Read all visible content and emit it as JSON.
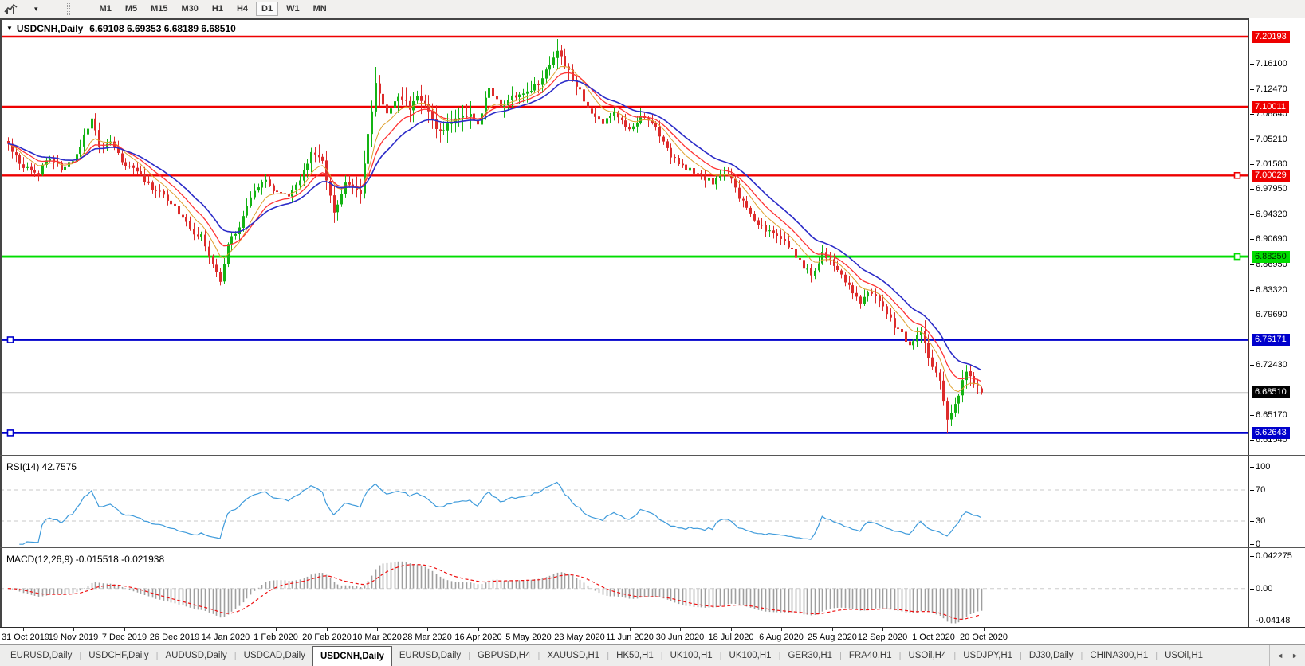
{
  "toolbar": {
    "dropdown_arrow": "▾",
    "timeframes": [
      "M1",
      "M5",
      "M15",
      "M30",
      "H1",
      "H4",
      "D1",
      "W1",
      "MN"
    ],
    "active_timeframe": "D1"
  },
  "chart_window": {
    "title_arrow": "▼",
    "symbol": "USDCNH,Daily",
    "ohlc": "6.69108 6.69353 6.68189 6.68510",
    "rsi_label": "RSI(14) 42.7575",
    "macd_label": "MACD(12,26,9) -0.015518 -0.021938"
  },
  "price_scale": {
    "ticks": [
      "7.16100",
      "7.12470",
      "7.08840",
      "7.05210",
      "7.01580",
      "6.97950",
      "6.94320",
      "6.90690",
      "6.86950",
      "6.83320",
      "6.79690",
      "6.72430",
      "6.65170",
      "6.61540"
    ],
    "level_labels": [
      {
        "text": "7.20193",
        "bg": "#ee0000",
        "fg": "#ffffff"
      },
      {
        "text": "7.10011",
        "bg": "#ee0000",
        "fg": "#ffffff"
      },
      {
        "text": "7.00029",
        "bg": "#ee0000",
        "fg": "#ffffff"
      },
      {
        "text": "6.88250",
        "bg": "#00dd00",
        "fg": "#002a00"
      },
      {
        "text": "6.76171",
        "bg": "#0000cc",
        "fg": "#ffffff"
      },
      {
        "text": "6.68510",
        "bg": "#000000",
        "fg": "#ffffff"
      },
      {
        "text": "6.62643",
        "bg": "#0000cc",
        "fg": "#ffffff"
      }
    ],
    "rsi_ticks": [
      "100",
      "70",
      "30",
      "0"
    ],
    "macd_ticks": [
      "0.042275",
      "0.00",
      "-0.04148"
    ]
  },
  "date_axis": [
    "31 Oct 2019",
    "19 Nov 2019",
    "7 Dec 2019",
    "26 Dec 2019",
    "14 Jan 2020",
    "1 Feb 2020",
    "20 Feb 2020",
    "10 Mar 2020",
    "28 Mar 2020",
    "16 Apr 2020",
    "5 May 2020",
    "23 May 2020",
    "11 Jun 2020",
    "30 Jun 2020",
    "18 Jul 2020",
    "6 Aug 2020",
    "25 Aug 2020",
    "12 Sep 2020",
    "1 Oct 2020",
    "20 Oct 2020"
  ],
  "tab_bar": {
    "tabs": [
      "EURUSD,Daily",
      "USDCHF,Daily",
      "AUDUSD,Daily",
      "USDCAD,Daily",
      "USDCNH,Daily",
      "EURUSD,Daily",
      "GBPUSD,H4",
      "XAUUSD,H1",
      "HK50,H1",
      "UK100,H1",
      "UK100,H1",
      "GER30,H1",
      "FRA40,H1",
      "USOil,H4",
      "USDJPY,H1",
      "DJ30,Daily",
      "CHINA300,H1",
      "USOil,H1"
    ],
    "active_index": 4,
    "scroll_left_arrow": "◄",
    "scroll_right_arrow": "►"
  },
  "chart_data": {
    "type": "candlestick",
    "symbol": "USDCNH",
    "timeframe": "Daily",
    "ohlc": {
      "open": 6.69108,
      "high": 6.69353,
      "low": 6.68189,
      "close": 6.6851
    },
    "visible_price_range": [
      6.6154,
      7.2019
    ],
    "candle_count": 258,
    "current_price": 6.6851,
    "horizontal_levels": [
      {
        "price": 7.20193,
        "color": "#ee0000",
        "width": 2.4,
        "marker": null
      },
      {
        "price": 7.10011,
        "color": "#ee0000",
        "width": 2.4,
        "marker": null
      },
      {
        "price": 7.00029,
        "color": "#ee0000",
        "width": 2.4,
        "marker": "right"
      },
      {
        "price": 6.8825,
        "color": "#00dd00",
        "width": 2.8,
        "marker": "right"
      },
      {
        "price": 6.76171,
        "color": "#0000cc",
        "width": 2.8,
        "marker": "left"
      },
      {
        "price": 6.62643,
        "color": "#0000cc",
        "width": 2.8,
        "marker": "left"
      }
    ],
    "price_path": [
      [
        0,
        7.045
      ],
      [
        4,
        7.01
      ],
      [
        8,
        7.005
      ],
      [
        11,
        7.028
      ],
      [
        14,
        7.012
      ],
      [
        18,
        7.03
      ],
      [
        21,
        7.07
      ],
      [
        22,
        7.082
      ],
      [
        24,
        7.045
      ],
      [
        27,
        7.05
      ],
      [
        30,
        7.02
      ],
      [
        33,
        7.012
      ],
      [
        38,
        6.982
      ],
      [
        41,
        6.972
      ],
      [
        44,
        6.955
      ],
      [
        48,
        6.92
      ],
      [
        51,
        6.913
      ],
      [
        54,
        6.872
      ],
      [
        56,
        6.85
      ],
      [
        58,
        6.9
      ],
      [
        61,
        6.928
      ],
      [
        64,
        6.965
      ],
      [
        67,
        6.995
      ],
      [
        71,
        6.975
      ],
      [
        74,
        6.968
      ],
      [
        77,
        6.992
      ],
      [
        80,
        7.03
      ],
      [
        83,
        7.022
      ],
      [
        86,
        6.942
      ],
      [
        89,
        6.988
      ],
      [
        93,
        6.972
      ],
      [
        95,
        7.06
      ],
      [
        97,
        7.135
      ],
      [
        100,
        7.09
      ],
      [
        103,
        7.118
      ],
      [
        106,
        7.1
      ],
      [
        108,
        7.12
      ],
      [
        111,
        7.09
      ],
      [
        114,
        7.062
      ],
      [
        117,
        7.08
      ],
      [
        121,
        7.09
      ],
      [
        124,
        7.078
      ],
      [
        127,
        7.128
      ],
      [
        130,
        7.1
      ],
      [
        133,
        7.112
      ],
      [
        136,
        7.12
      ],
      [
        139,
        7.13
      ],
      [
        142,
        7.15
      ],
      [
        145,
        7.185
      ],
      [
        148,
        7.15
      ],
      [
        150,
        7.132
      ],
      [
        154,
        7.09
      ],
      [
        157,
        7.077
      ],
      [
        160,
        7.09
      ],
      [
        164,
        7.066
      ],
      [
        167,
        7.088
      ],
      [
        171,
        7.07
      ],
      [
        175,
        7.03
      ],
      [
        179,
        7.012
      ],
      [
        182,
        7.005
      ],
      [
        186,
        6.99
      ],
      [
        190,
        7.005
      ],
      [
        193,
        6.97
      ],
      [
        196,
        6.945
      ],
      [
        199,
        6.925
      ],
      [
        203,
        6.91
      ],
      [
        206,
        6.9
      ],
      [
        209,
        6.875
      ],
      [
        212,
        6.855
      ],
      [
        215,
        6.888
      ],
      [
        218,
        6.872
      ],
      [
        222,
        6.84
      ],
      [
        225,
        6.815
      ],
      [
        228,
        6.832
      ],
      [
        231,
        6.81
      ],
      [
        234,
        6.782
      ],
      [
        238,
        6.755
      ],
      [
        241,
        6.772
      ],
      [
        243,
        6.734
      ],
      [
        246,
        6.7
      ],
      [
        248,
        6.642
      ],
      [
        250,
        6.668
      ],
      [
        253,
        6.714
      ],
      [
        255,
        6.7
      ],
      [
        257,
        6.6851
      ]
    ],
    "key_points": {
      "march_high_index": 97,
      "march_high": 7.158,
      "peak_index": 145,
      "peak_high": 7.1985,
      "jan_low_index": 56,
      "jan_low": 6.8405,
      "oct_low_index": 248,
      "oct_low": 6.6268
    },
    "colors": {
      "up": "#14b314",
      "down": "#dd2c2c",
      "current_price_line": "#c0c0c0"
    },
    "moving_averages": [
      {
        "period": 8,
        "color": "#dfa02e",
        "width": 1
      },
      {
        "period": 13,
        "color": "#ff3434",
        "width": 1.3
      },
      {
        "period": 21,
        "color": "#2c2cc8",
        "width": 1.6
      }
    ],
    "indicators": {
      "rsi": {
        "period": 14,
        "current": 42.7575,
        "guide_levels": [
          70,
          30
        ],
        "color": "#3f9bdb"
      },
      "macd": {
        "fast": 12,
        "slow": 26,
        "signal": 9,
        "main": -0.015518,
        "signal_value": -0.021938,
        "hist_color": "#9f9f9f",
        "signal_color": "#ee1111",
        "scale_top": 0.042275,
        "scale_bottom": -0.04148
      }
    }
  }
}
